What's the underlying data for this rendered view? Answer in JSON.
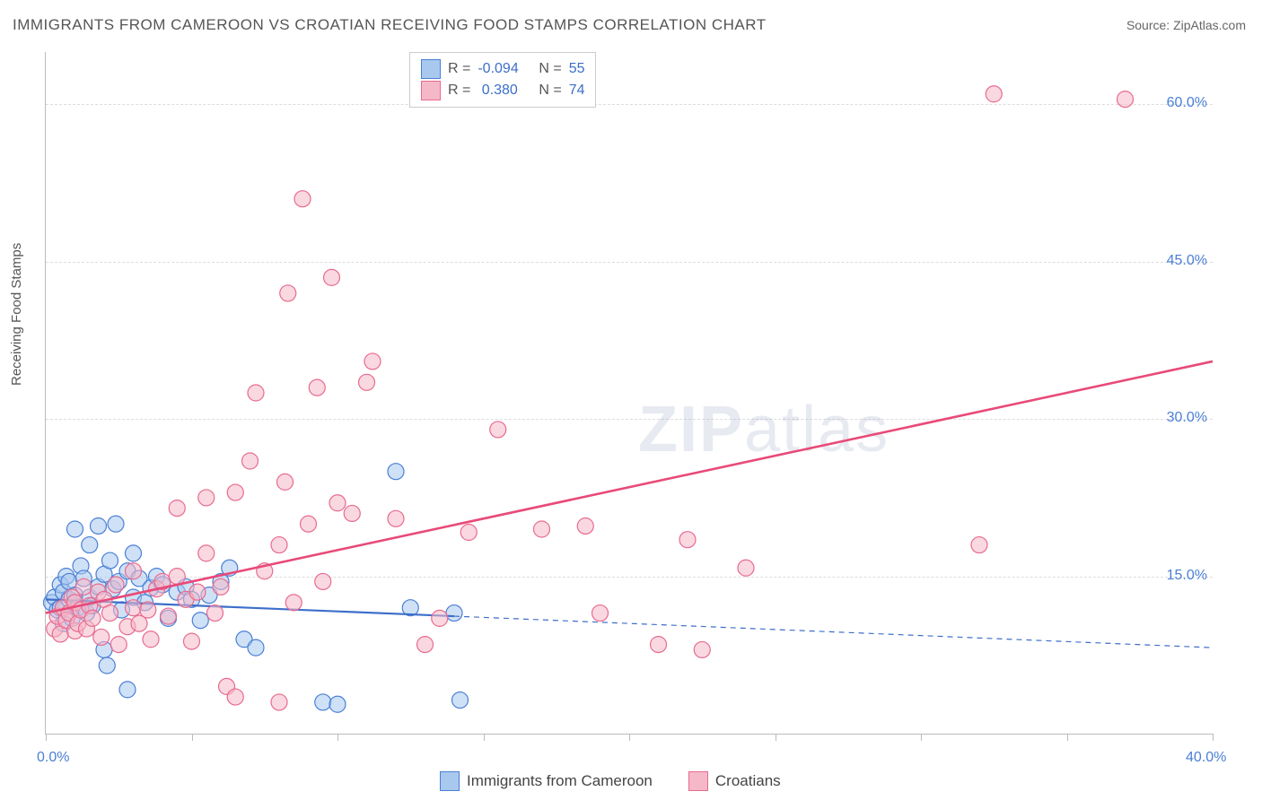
{
  "title": "IMMIGRANTS FROM CAMEROON VS CROATIAN RECEIVING FOOD STAMPS CORRELATION CHART",
  "source": "Source: ZipAtlas.com",
  "ylabel": "Receiving Food Stamps",
  "watermark_bold": "ZIP",
  "watermark_rest": "atlas",
  "chart": {
    "type": "scatter",
    "xlim": [
      0,
      40
    ],
    "ylim": [
      0,
      65
    ],
    "x_ticks": [
      0,
      5,
      10,
      15,
      20,
      25,
      30,
      35,
      40
    ],
    "x_tick_labels": {
      "0": "0.0%",
      "40": "40.0%"
    },
    "y_ticks": [
      15,
      30,
      45,
      60
    ],
    "y_tick_labels": {
      "15": "15.0%",
      "30": "30.0%",
      "45": "45.0%",
      "60": "60.0%"
    },
    "grid_color": "#dddddd",
    "axis_color": "#bbbbbb",
    "background_color": "#ffffff",
    "tick_label_color": "#4a7fd6",
    "series": [
      {
        "name": "Immigrants from Cameroon",
        "r": -0.094,
        "n": 55,
        "fill": "#a8c8ee",
        "fill_opacity": 0.55,
        "stroke": "#4a7fd6",
        "marker_radius": 9,
        "trend": {
          "x1": 0,
          "y1": 12.8,
          "x2": 14,
          "y2": 11.2,
          "solid_color": "#3d6fc9",
          "solid_width": 2.2,
          "dash_x2": 40,
          "dash_y2": 8.2,
          "dash_color": "#3d6fc9",
          "dash_width": 1.2
        },
        "points": [
          [
            0.2,
            12.5
          ],
          [
            0.3,
            13.0
          ],
          [
            0.4,
            11.8
          ],
          [
            0.5,
            14.2
          ],
          [
            0.5,
            12.0
          ],
          [
            0.6,
            13.5
          ],
          [
            0.6,
            10.5
          ],
          [
            0.7,
            15.0
          ],
          [
            0.8,
            12.8
          ],
          [
            0.8,
            14.5
          ],
          [
            0.9,
            11.0
          ],
          [
            1.0,
            13.2
          ],
          [
            1.0,
            19.5
          ],
          [
            1.1,
            12.0
          ],
          [
            1.2,
            16.0
          ],
          [
            1.3,
            14.8
          ],
          [
            1.4,
            11.5
          ],
          [
            1.5,
            18.0
          ],
          [
            1.5,
            13.0
          ],
          [
            1.6,
            12.2
          ],
          [
            1.8,
            14.0
          ],
          [
            1.8,
            19.8
          ],
          [
            2.0,
            15.2
          ],
          [
            2.0,
            8.0
          ],
          [
            2.1,
            6.5
          ],
          [
            2.2,
            16.5
          ],
          [
            2.3,
            13.8
          ],
          [
            2.4,
            20.0
          ],
          [
            2.5,
            14.5
          ],
          [
            2.6,
            11.8
          ],
          [
            2.8,
            15.5
          ],
          [
            2.8,
            4.2
          ],
          [
            3.0,
            13.0
          ],
          [
            3.0,
            17.2
          ],
          [
            3.2,
            14.8
          ],
          [
            3.4,
            12.5
          ],
          [
            3.6,
            13.9
          ],
          [
            3.8,
            15.0
          ],
          [
            4.0,
            14.2
          ],
          [
            4.2,
            11.0
          ],
          [
            4.5,
            13.5
          ],
          [
            4.8,
            14.0
          ],
          [
            5.0,
            12.8
          ],
          [
            5.3,
            10.8
          ],
          [
            5.6,
            13.2
          ],
          [
            6.0,
            14.5
          ],
          [
            6.3,
            15.8
          ],
          [
            6.8,
            9.0
          ],
          [
            7.2,
            8.2
          ],
          [
            9.5,
            3.0
          ],
          [
            10.0,
            2.8
          ],
          [
            12.0,
            25.0
          ],
          [
            12.5,
            12.0
          ],
          [
            14.0,
            11.5
          ],
          [
            14.2,
            3.2
          ]
        ]
      },
      {
        "name": "Croatians",
        "r": 0.38,
        "n": 74,
        "fill": "#f5b8c8",
        "fill_opacity": 0.55,
        "stroke": "#e86b8f",
        "marker_radius": 9,
        "trend": {
          "x1": 0,
          "y1": 11.5,
          "x2": 40,
          "y2": 35.5,
          "solid_color": "#e84a78",
          "solid_width": 2.6
        },
        "points": [
          [
            0.3,
            10.0
          ],
          [
            0.4,
            11.2
          ],
          [
            0.5,
            9.5
          ],
          [
            0.6,
            12.0
          ],
          [
            0.7,
            10.8
          ],
          [
            0.8,
            11.5
          ],
          [
            0.9,
            13.0
          ],
          [
            1.0,
            9.8
          ],
          [
            1.0,
            12.5
          ],
          [
            1.1,
            10.5
          ],
          [
            1.2,
            11.8
          ],
          [
            1.3,
            14.0
          ],
          [
            1.4,
            10.0
          ],
          [
            1.5,
            12.2
          ],
          [
            1.6,
            11.0
          ],
          [
            1.8,
            13.5
          ],
          [
            1.9,
            9.2
          ],
          [
            2.0,
            12.8
          ],
          [
            2.2,
            11.5
          ],
          [
            2.4,
            14.2
          ],
          [
            2.5,
            8.5
          ],
          [
            2.8,
            10.2
          ],
          [
            3.0,
            12.0
          ],
          [
            3.0,
            15.5
          ],
          [
            3.2,
            10.5
          ],
          [
            3.5,
            11.8
          ],
          [
            3.6,
            9.0
          ],
          [
            3.8,
            13.8
          ],
          [
            4.0,
            14.5
          ],
          [
            4.2,
            11.2
          ],
          [
            4.5,
            15.0
          ],
          [
            4.5,
            21.5
          ],
          [
            4.8,
            12.8
          ],
          [
            5.0,
            8.8
          ],
          [
            5.2,
            13.5
          ],
          [
            5.5,
            17.2
          ],
          [
            5.8,
            11.5
          ],
          [
            5.5,
            22.5
          ],
          [
            6.0,
            14.0
          ],
          [
            6.2,
            4.5
          ],
          [
            6.5,
            23.0
          ],
          [
            6.5,
            3.5
          ],
          [
            7.0,
            26.0
          ],
          [
            7.2,
            32.5
          ],
          [
            7.5,
            15.5
          ],
          [
            8.0,
            18.0
          ],
          [
            8.0,
            3.0
          ],
          [
            8.2,
            24.0
          ],
          [
            8.3,
            42.0
          ],
          [
            8.5,
            12.5
          ],
          [
            8.8,
            51.0
          ],
          [
            9.0,
            20.0
          ],
          [
            9.3,
            33.0
          ],
          [
            9.5,
            14.5
          ],
          [
            9.8,
            43.5
          ],
          [
            10.0,
            22.0
          ],
          [
            10.5,
            21.0
          ],
          [
            11.0,
            33.5
          ],
          [
            11.2,
            35.5
          ],
          [
            12.0,
            20.5
          ],
          [
            13.0,
            8.5
          ],
          [
            13.5,
            11.0
          ],
          [
            14.5,
            19.2
          ],
          [
            15.5,
            29.0
          ],
          [
            17.0,
            19.5
          ],
          [
            18.5,
            19.8
          ],
          [
            19.0,
            11.5
          ],
          [
            21.0,
            8.5
          ],
          [
            22.0,
            18.5
          ],
          [
            22.5,
            8.0
          ],
          [
            24.0,
            15.8
          ],
          [
            32.0,
            18.0
          ],
          [
            32.5,
            61.0
          ],
          [
            37.0,
            60.5
          ]
        ]
      }
    ]
  },
  "legend_top": {
    "r_label": "R =",
    "n_label": "N =",
    "rows": [
      {
        "r": "-0.094",
        "n": "55",
        "sw_fill": "#a8c8ee",
        "sw_stroke": "#4a7fd6"
      },
      {
        "r": " 0.380",
        "n": "74",
        "sw_fill": "#f5b8c8",
        "sw_stroke": "#e86b8f"
      }
    ],
    "label_color": "#555555",
    "value_color": "#3d6fc9"
  },
  "legend_bottom": [
    {
      "label": "Immigrants from Cameroon",
      "sw_fill": "#a8c8ee",
      "sw_stroke": "#4a7fd6"
    },
    {
      "label": "Croatians",
      "sw_fill": "#f5b8c8",
      "sw_stroke": "#e86b8f"
    }
  ]
}
